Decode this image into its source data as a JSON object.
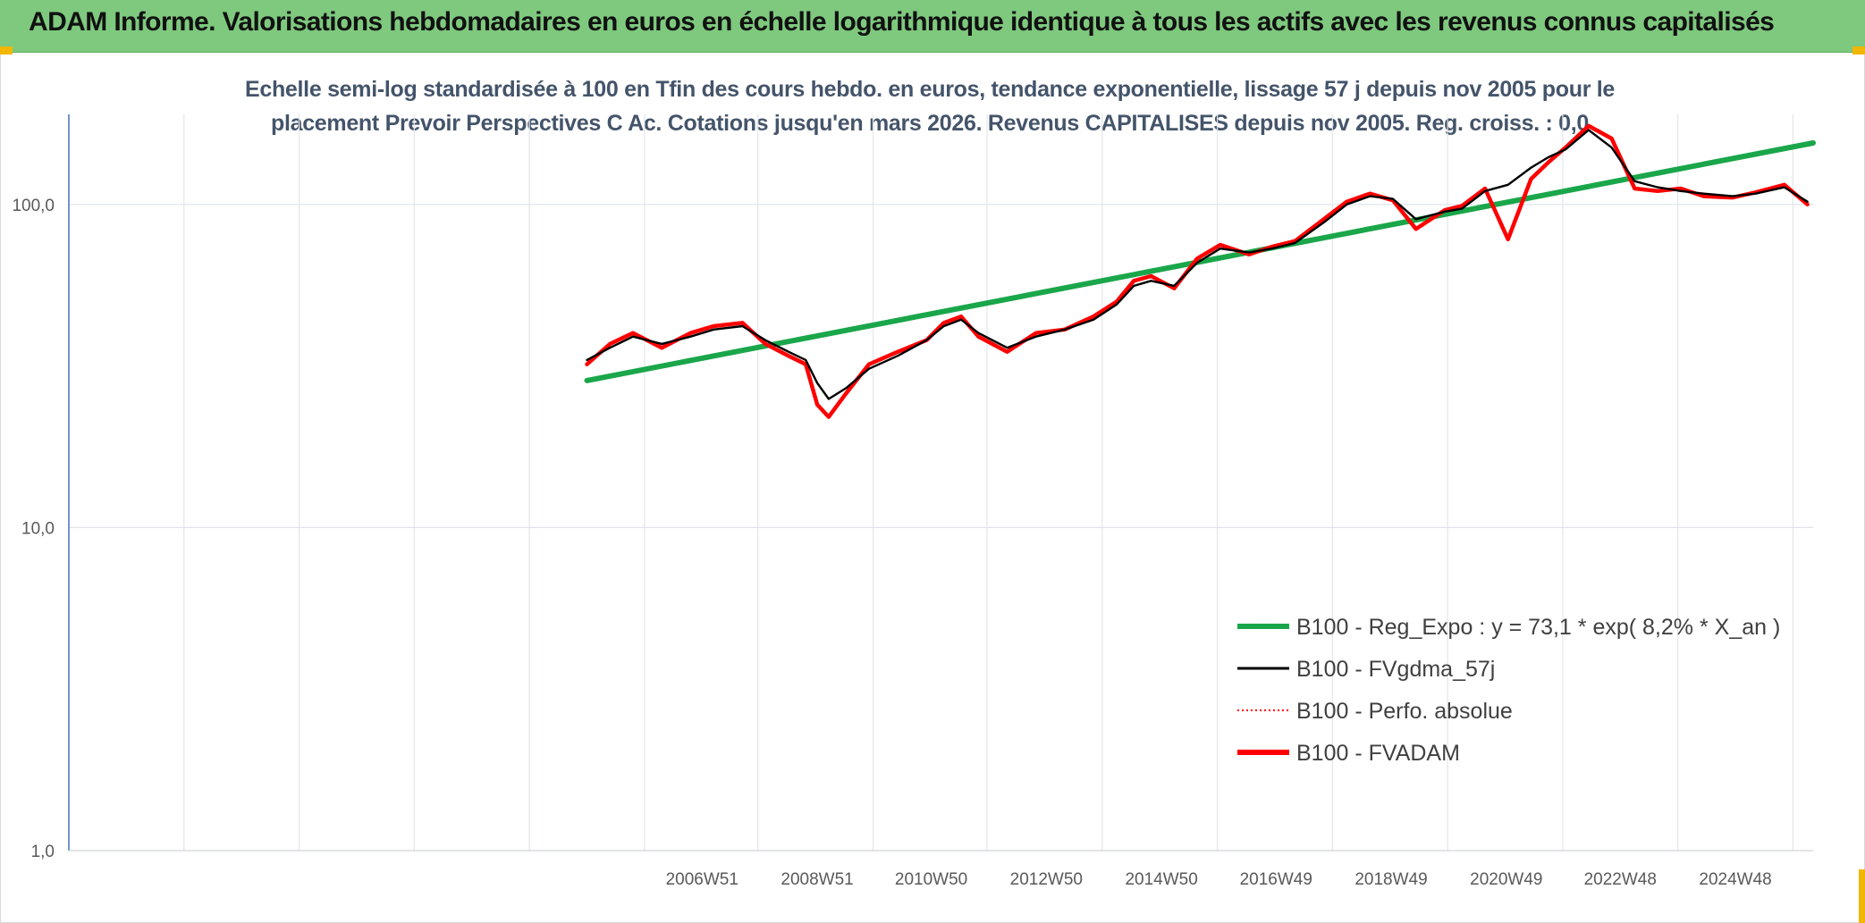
{
  "header": {
    "title": "ADAM Informe. Valorisations hebdomadaires en euros en échelle logarithmique identique à tous les actifs avec les revenus connus capitalisés"
  },
  "chart_data": {
    "type": "line",
    "title_line1": "Echelle semi-log standardisée à 100 en Tfin des cours hebdo. en euros, tendance exponentielle, lissage 57 j depuis nov 2005 pour le",
    "title_line2": "placement Prevoir Perspectives C Ac. Cotations jusqu'en mars 2026. Revenus CAPITALISES depuis nov 2005. Reg. croiss. : 0,0",
    "y_scale": "log",
    "ylim": [
      1,
      190
    ],
    "y_ticks": [
      1,
      10,
      100
    ],
    "y_tick_labels": [
      "1,0",
      "10,0",
      "100,0"
    ],
    "xlim": [
      1996.0,
      2026.3
    ],
    "x_ticks": [
      1998.0,
      2000.0,
      2002.0,
      2004.0,
      2006.0,
      2007.97,
      2009.97,
      2011.95,
      2013.95,
      2015.95,
      2017.95,
      2019.95,
      2021.95,
      2023.95,
      2025.95
    ],
    "x_tick_labels": [
      "2006W51",
      "2008W51",
      "2010W50",
      "2012W50",
      "2014W50",
      "2016W49",
      "2018W49",
      "2020W49",
      "2022W48",
      "2024W48"
    ],
    "x_label_positions": [
      2007.0,
      2009.0,
      2010.98,
      2012.98,
      2014.98,
      2016.97,
      2018.97,
      2020.97,
      2022.95,
      2024.95
    ],
    "grid": true,
    "legend_position": "right",
    "series": [
      {
        "name": "B100 - Reg_Expo : y = 73,1 * exp( 8,2% *  X_an )",
        "color": "#1aa64a",
        "style": "solid-thick",
        "x": [
          2005.0,
          2026.3
        ],
        "y": [
          28.5,
          155.0
        ]
      },
      {
        "name": "B100 - FVgdma_57j",
        "color": "#000000",
        "style": "solid-thin",
        "x": [
          2005.0,
          2005.4,
          2005.8,
          2006.3,
          2006.8,
          2007.2,
          2007.7,
          2008.1,
          2008.5,
          2008.8,
          2009.0,
          2009.2,
          2009.5,
          2009.9,
          2010.4,
          2010.9,
          2011.2,
          2011.5,
          2011.8,
          2012.3,
          2012.8,
          2013.3,
          2013.8,
          2014.2,
          2014.5,
          2014.8,
          2015.2,
          2015.6,
          2016.0,
          2016.5,
          2016.9,
          2017.3,
          2017.8,
          2018.2,
          2018.6,
          2019.0,
          2019.4,
          2019.9,
          2020.2,
          2020.6,
          2021.0,
          2021.4,
          2021.7,
          2022.0,
          2022.4,
          2022.8,
          2023.2,
          2023.6,
          2024.0,
          2024.4,
          2024.9,
          2025.3,
          2025.8,
          2026.2
        ],
        "y": [
          33,
          36,
          39,
          37,
          39,
          41,
          42,
          38,
          35,
          33,
          28,
          25,
          27,
          31,
          34,
          38,
          42,
          44,
          40,
          36,
          39,
          41,
          44,
          49,
          56,
          58,
          56,
          66,
          73,
          71,
          73,
          76,
          88,
          100,
          106,
          104,
          90,
          95,
          97,
          110,
          115,
          130,
          140,
          148,
          170,
          150,
          118,
          113,
          110,
          108,
          106,
          108,
          113,
          102
        ]
      },
      {
        "name": "B100 - Perfo. absolue",
        "color": "#ff0000",
        "style": "dotted",
        "x": [],
        "y": []
      },
      {
        "name": "B100 - FVADAM",
        "color": "#ff0000",
        "style": "solid-thick",
        "x": [
          2005.0,
          2005.4,
          2005.8,
          2006.3,
          2006.8,
          2007.2,
          2007.7,
          2008.1,
          2008.5,
          2008.8,
          2009.0,
          2009.2,
          2009.5,
          2009.9,
          2010.4,
          2010.9,
          2011.2,
          2011.5,
          2011.8,
          2012.3,
          2012.8,
          2013.3,
          2013.8,
          2014.2,
          2014.5,
          2014.8,
          2015.2,
          2015.6,
          2016.0,
          2016.5,
          2016.9,
          2017.3,
          2017.8,
          2018.2,
          2018.6,
          2019.0,
          2019.4,
          2019.9,
          2020.2,
          2020.6,
          2021.0,
          2021.4,
          2021.7,
          2022.0,
          2022.4,
          2022.8,
          2023.2,
          2023.6,
          2024.0,
          2024.4,
          2024.9,
          2025.3,
          2025.8,
          2026.2
        ],
        "y": [
          32,
          37,
          40,
          36,
          40,
          42,
          43,
          37,
          34,
          32,
          24,
          22,
          26,
          32,
          35,
          38,
          43,
          45,
          39,
          35,
          40,
          41,
          45,
          50,
          58,
          60,
          55,
          68,
          75,
          70,
          74,
          77,
          90,
          102,
          108,
          103,
          84,
          96,
          99,
          112,
          78,
          120,
          135,
          150,
          175,
          160,
          112,
          110,
          112,
          106,
          105,
          109,
          115,
          100
        ]
      }
    ]
  }
}
